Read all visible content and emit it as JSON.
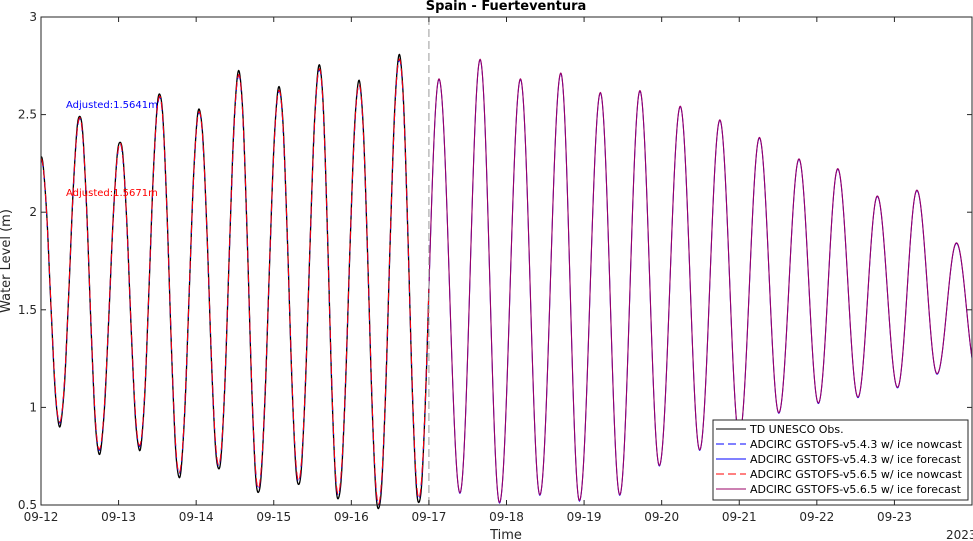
{
  "chart_data": {
    "type": "line",
    "title": "Spain - Fuerteventura",
    "xlabel": "Time",
    "ylabel": "Water Level (m)",
    "year_label": "2023",
    "xlim": [
      "2023-09-12",
      "2023-09-24"
    ],
    "ylim": [
      0.5,
      3
    ],
    "grid": false,
    "legend_position": "bottom-right",
    "x_ticks": [
      "09-12",
      "09-13",
      "09-14",
      "09-15",
      "09-16",
      "09-17",
      "09-18",
      "09-19",
      "09-20",
      "09-21",
      "09-22",
      "09-23"
    ],
    "y_ticks": [
      "0.5",
      "1",
      "1.5",
      "2",
      "2.5",
      "3"
    ],
    "nowcast_forecast_boundary": "2023-09-17",
    "tidal_period_hours": 12.42,
    "start_value": 2.27,
    "extrema_days": [
      0.24,
      0.5,
      0.75,
      1.02,
      1.27,
      1.53,
      1.78,
      2.04,
      2.29,
      2.55,
      2.8,
      3.07,
      3.32,
      3.59,
      3.83,
      4.1,
      4.35,
      4.62,
      4.87,
      5.13,
      5.4,
      5.66,
      5.91,
      6.18,
      6.43,
      6.7,
      6.94,
      7.21,
      7.46,
      7.72,
      7.97,
      8.24,
      8.49,
      8.75,
      9.0,
      9.26,
      9.51,
      9.77,
      10.02,
      10.27,
      10.53,
      10.78,
      11.04,
      11.29,
      11.55,
      11.8
    ],
    "extrema_values": [
      0.92,
      2.48,
      0.78,
      2.35,
      0.8,
      2.59,
      0.66,
      2.51,
      0.7,
      2.7,
      0.58,
      2.62,
      0.62,
      2.73,
      0.55,
      2.65,
      0.5,
      2.78,
      0.53,
      2.68,
      0.56,
      2.78,
      0.51,
      2.68,
      0.55,
      2.71,
      0.52,
      2.61,
      0.55,
      2.62,
      0.7,
      2.54,
      0.78,
      2.47,
      0.85,
      2.38,
      0.97,
      2.27,
      1.02,
      2.22,
      1.05,
      2.08,
      1.1,
      2.11,
      1.17,
      1.84
    ],
    "obs_end_day": 5.0,
    "series": [
      {
        "name": "TD UNESCO Obs.",
        "color": "#000000",
        "style": "solid"
      },
      {
        "name": "ADCIRC GSTOFS-v5.4.3 w/ ice nowcast",
        "color": "#0000ff",
        "style": "dashed"
      },
      {
        "name": "ADCIRC GSTOFS-v5.4.3 w/ ice forecast",
        "color": "#0000ff",
        "style": "solid"
      },
      {
        "name": "ADCIRC GSTOFS-v5.6.5 w/ ice nowcast",
        "color": "#ff0000",
        "style": "dashed"
      },
      {
        "name": "ADCIRC GSTOFS-v5.6.5 w/ ice forecast",
        "color": "#990066",
        "style": "solid"
      }
    ],
    "annotations": [
      {
        "text": "Adjusted:1.5641m",
        "color": "#0000ff"
      },
      {
        "text": "Adjusted:1.5671m",
        "color": "#ff0000"
      }
    ]
  }
}
